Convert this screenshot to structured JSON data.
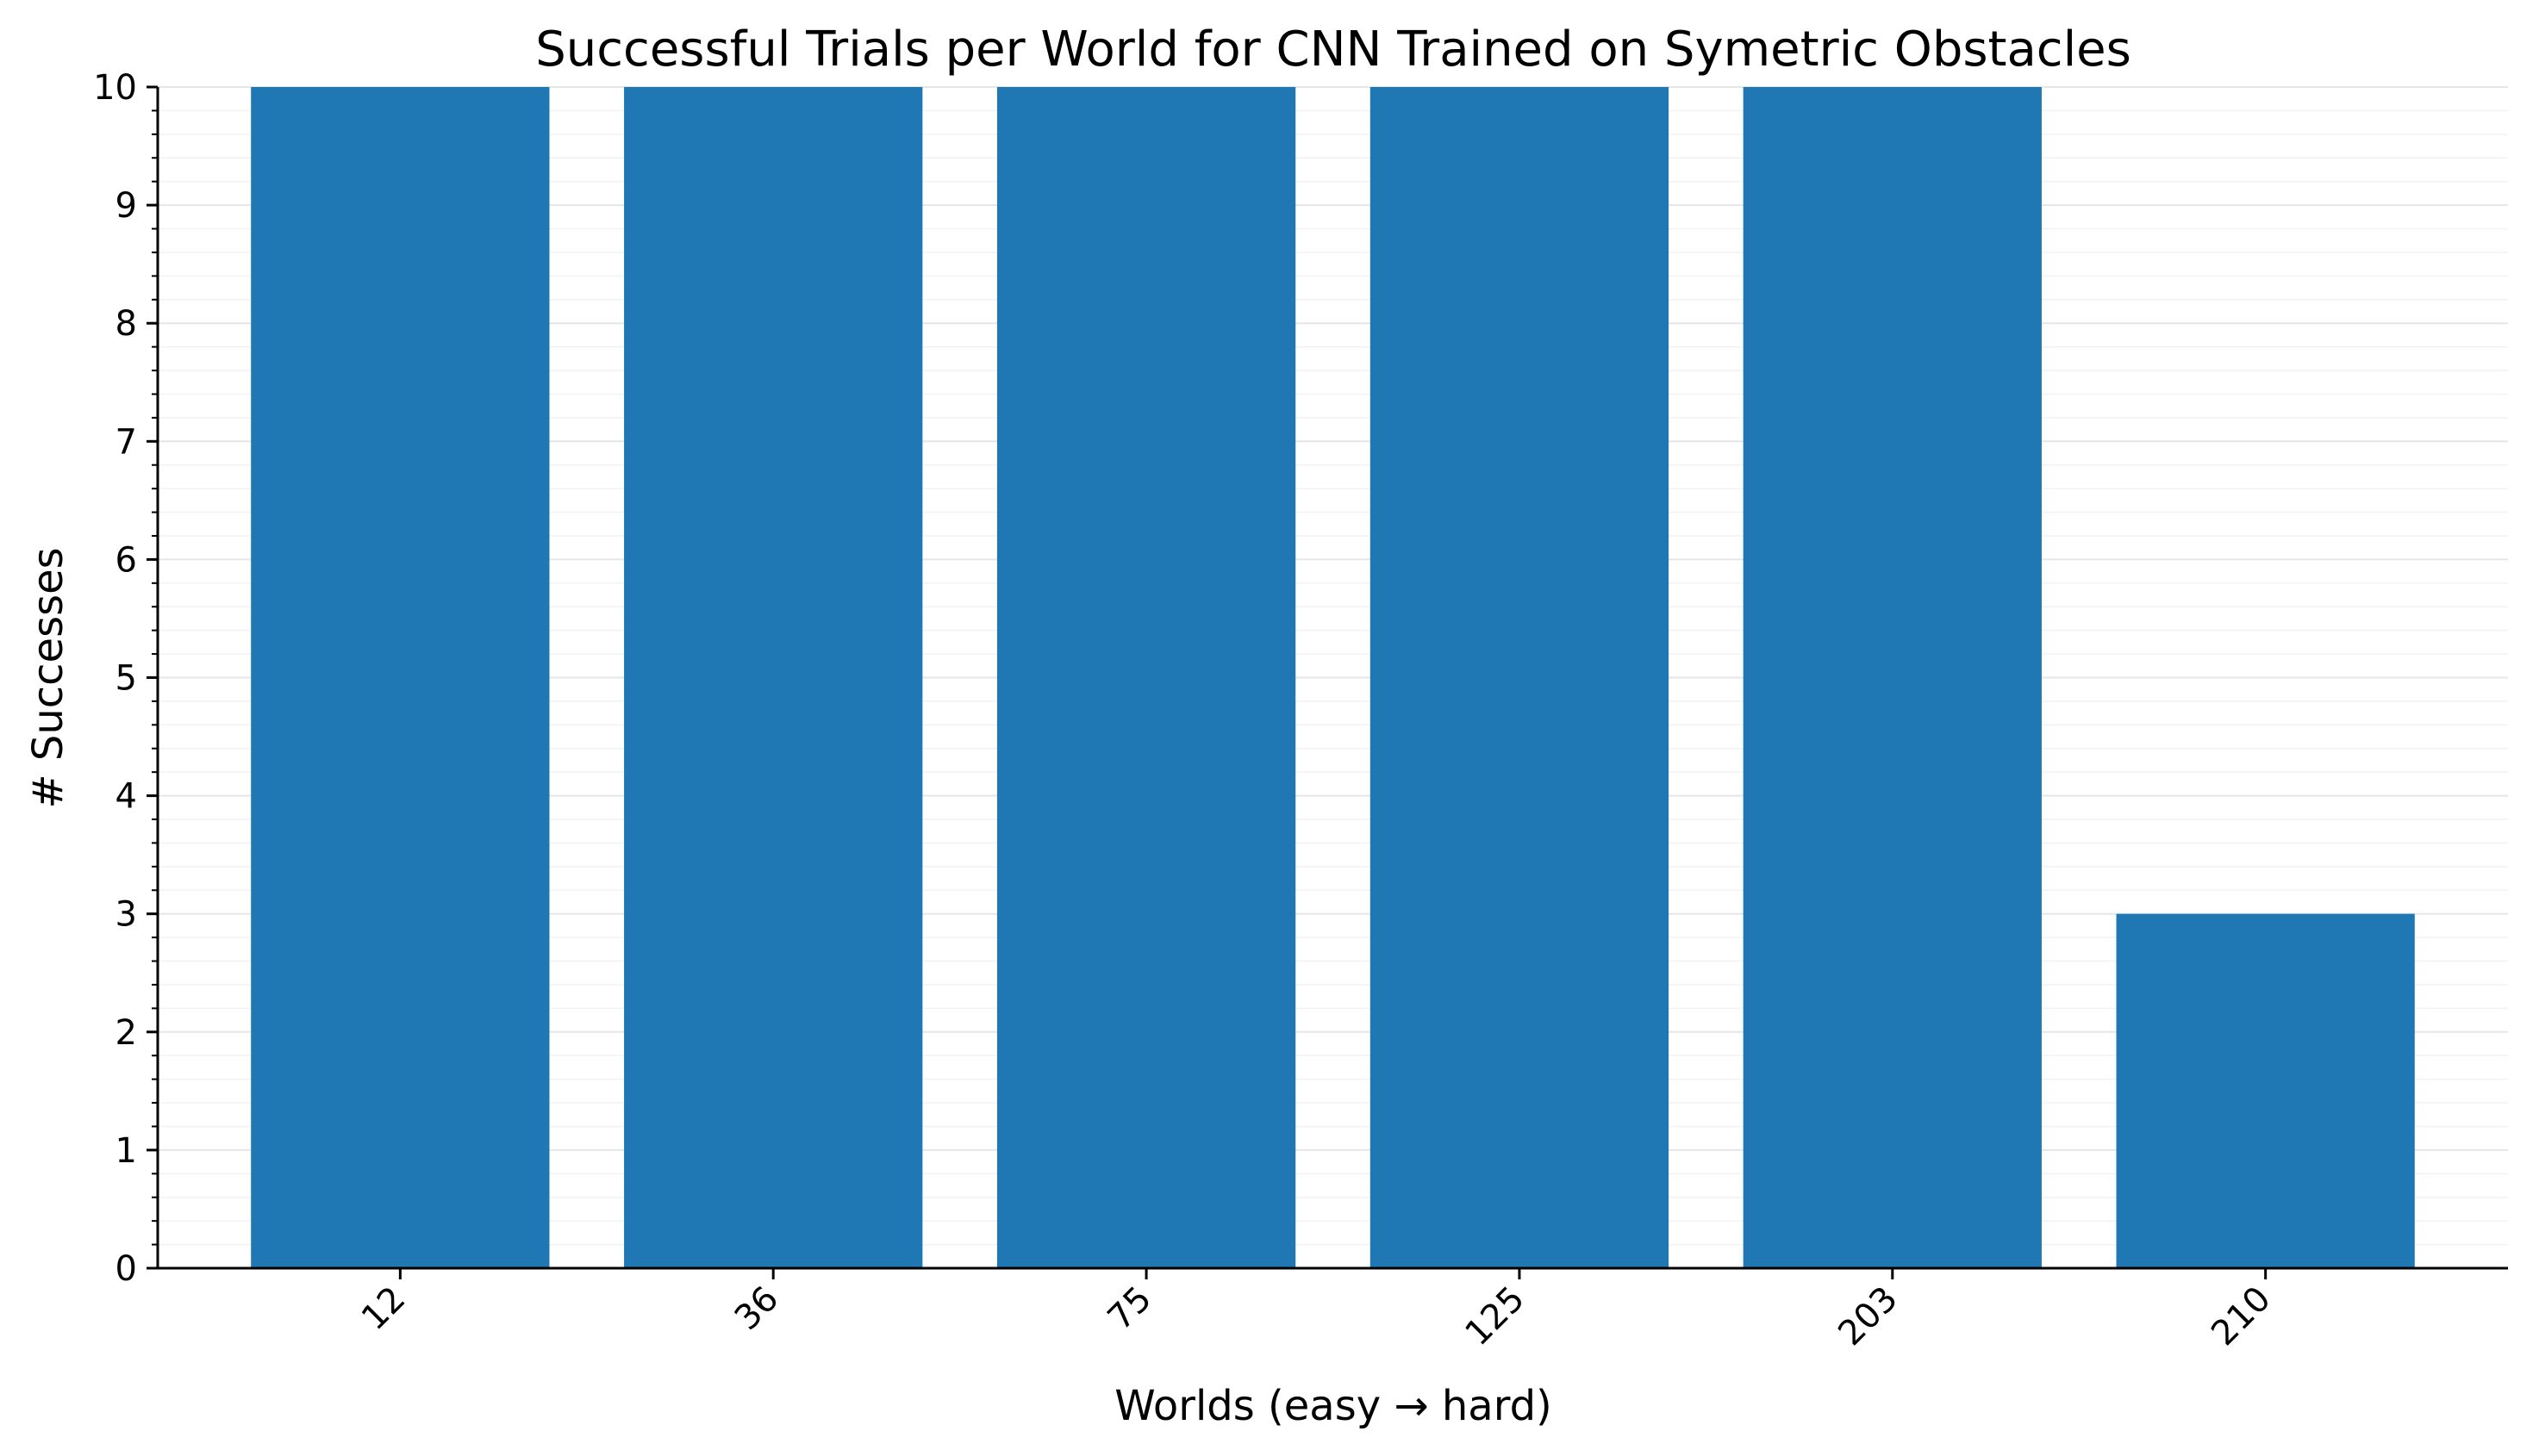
{
  "chart_data": {
    "type": "bar",
    "title": "Successful Trials per World for CNN Trained on Symetric Obstacles",
    "xlabel": "Worlds (easy → hard)",
    "ylabel": "# Successes",
    "categories": [
      "12",
      "36",
      "75",
      "125",
      "203",
      "210"
    ],
    "values": [
      10,
      10,
      10,
      10,
      10,
      3
    ],
    "ylim": [
      0,
      10
    ],
    "yticks": [
      0,
      1,
      2,
      3,
      4,
      5,
      6,
      7,
      8,
      9,
      10
    ],
    "grid": true,
    "bar_color": "#1f77b4",
    "x_tick_rotation": -45
  }
}
